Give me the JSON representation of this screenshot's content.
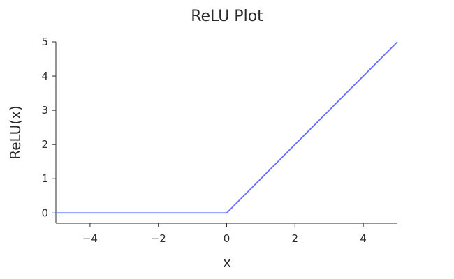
{
  "chart_data": {
    "type": "line",
    "title": "ReLU Plot",
    "xlabel": "x",
    "ylabel": "ReLU(x)",
    "xlim": [
      -5,
      5
    ],
    "ylim": [
      -0.3,
      5
    ],
    "grid": false,
    "x_ticks": [
      -4,
      -2,
      0,
      2,
      4
    ],
    "x_tick_labels": [
      "−4",
      "−2",
      "0",
      "2",
      "4"
    ],
    "y_ticks": [
      0,
      1,
      2,
      3,
      4,
      5
    ],
    "y_tick_labels": [
      "0",
      "1",
      "2",
      "3",
      "4",
      "5"
    ],
    "series": [
      {
        "color": "#636efa",
        "x": [
          -5,
          -4,
          -3,
          -2,
          -1,
          -0.2,
          0,
          0.2,
          1,
          2,
          3,
          4,
          5
        ],
        "y": [
          0,
          0,
          0,
          0,
          0,
          0,
          0,
          0.2,
          1,
          2,
          3,
          4,
          5
        ]
      }
    ]
  }
}
